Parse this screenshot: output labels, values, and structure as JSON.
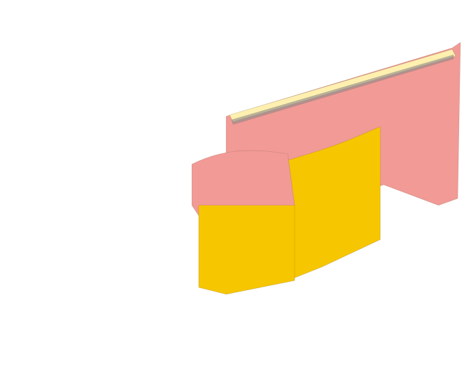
{
  "scene": {
    "description_hidden": "",
    "colors": {
      "background": "#ffffff",
      "gold": "#f6c600",
      "gold_dark": "#d9a900",
      "salmon": "#f29a96",
      "salmon_light": "#f7c5c2",
      "pale_pink": "#f8dede",
      "magenta": "#e58cf0",
      "cream": "#fff0b0",
      "grey": "#8a8a8a"
    },
    "layers": [
      "pale-pink",
      "gold",
      "salmon",
      "magenta",
      "cream"
    ]
  }
}
